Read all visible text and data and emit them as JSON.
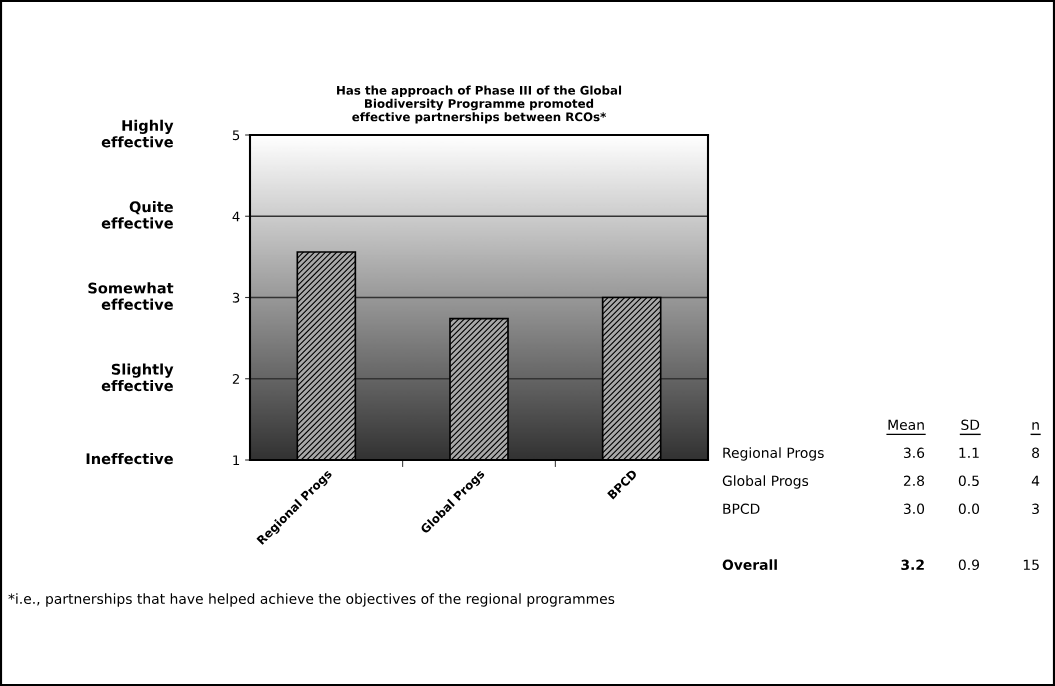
{
  "chart_data": {
    "type": "bar",
    "title": "Has the approach of Phase III of the Global\nBiodiversity Programme promoted\neffective partnerships between RCOs*",
    "categories": [
      "Regional Progs",
      "Global Progs",
      "BPCD"
    ],
    "values": [
      3.56,
      2.74,
      3.0
    ],
    "color": "#a8a8a8",
    "ylim": [
      1,
      5
    ],
    "yticks": [
      1,
      2,
      3,
      4,
      5
    ],
    "grid": "y",
    "annotations": [
      "Highly\neffective",
      "Quite\neffective",
      "Somewhat\neffective",
      "Slightly\neffective",
      "Ineffective",
      "Mean",
      "SD",
      "n",
      "Regional Progs",
      "3.6",
      "1.1",
      "8",
      "Global Progs",
      "2.8",
      "0.5",
      "4",
      "BPCD",
      "3.0",
      "0.0",
      "3",
      "Overall",
      "3.2",
      "0.9",
      "15",
      "*i.e., partnerships that have helped achieve the objectives of the regional programmes"
    ]
  }
}
